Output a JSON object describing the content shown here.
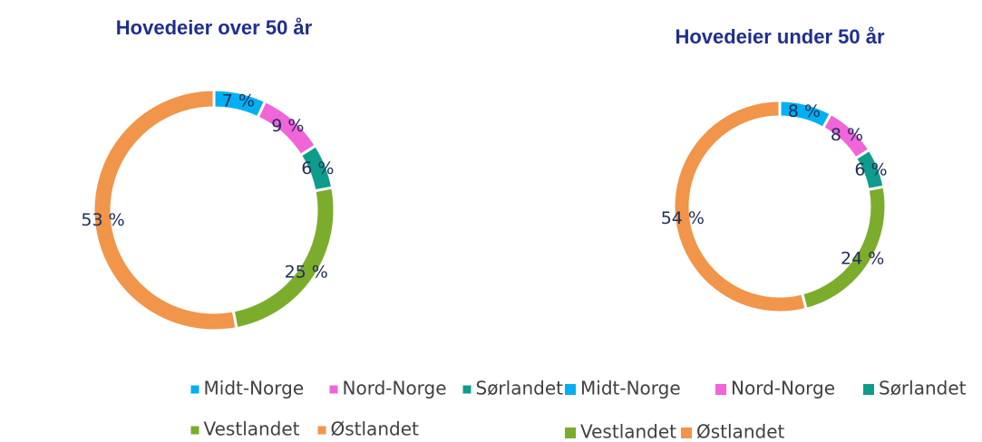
{
  "chart_data": [
    {
      "type": "donut",
      "title": "Hovedeier over 50 år",
      "categories": [
        "Midt-Norge",
        "Nord-Norge",
        "Sørlandet",
        "Vestlandet",
        "Østlandet"
      ],
      "values": [
        7,
        9,
        6,
        25,
        53
      ],
      "value_labels": [
        "7 %",
        "9 %",
        "6 %",
        "25 %",
        "53 %"
      ],
      "colors": [
        "#00b0f0",
        "#f065d8",
        "#0e9c8c",
        "#7cac2c",
        "#f0954a"
      ]
    },
    {
      "type": "donut",
      "title": "Hovedeier under 50 år",
      "categories": [
        "Midt-Norge",
        "Nord-Norge",
        "Sørlandet",
        "Vestlandet",
        "Østlandet"
      ],
      "values": [
        8,
        8,
        6,
        24,
        54
      ],
      "value_labels": [
        "8 %",
        "8 %",
        "6 %",
        "24 %",
        "54 %"
      ],
      "colors": [
        "#00b0f0",
        "#f065d8",
        "#0e9c8c",
        "#7cac2c",
        "#f0954a"
      ]
    }
  ]
}
